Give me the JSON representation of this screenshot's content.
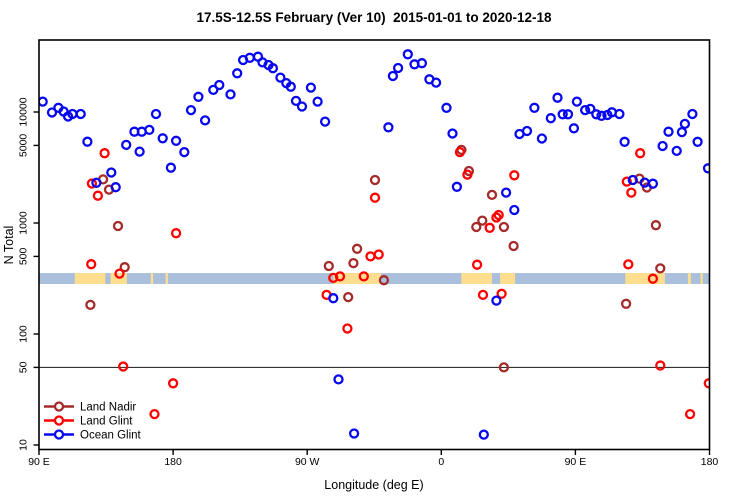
{
  "title": "17.5S-12.5S February (Ver 10)  2015-01-01 to 2020-12-18",
  "axes": {
    "x_label": "Longitude (deg E)",
    "y_label": "N Total",
    "x_ticks": [
      {
        "pos_deg": 0,
        "label": "90 E"
      },
      {
        "pos_deg": 90,
        "label": "180"
      },
      {
        "pos_deg": 180,
        "label": "90 W"
      },
      {
        "pos_deg": 270,
        "label": "0"
      },
      {
        "pos_deg": 360,
        "label": "90 E"
      },
      {
        "pos_deg": 450,
        "label": "180"
      }
    ],
    "y_ticks": [
      {
        "value": 10,
        "label": "10"
      },
      {
        "value": 50,
        "label": "50"
      },
      {
        "value": 100,
        "label": "100"
      },
      {
        "value": 500,
        "label": "500"
      },
      {
        "value": 1000,
        "label": "1000"
      },
      {
        "value": 5000,
        "label": "5000"
      },
      {
        "value": 10000,
        "label": "10000"
      }
    ]
  },
  "reference_line_value": 50,
  "map_band": {
    "n_range": [
      282,
      354
    ],
    "ocean_color": "#A9BFDB",
    "land_color": "#FFDF8F",
    "land_patches_deg": [
      [
        24,
        44.5
      ],
      [
        48,
        59
      ],
      [
        75,
        76.5
      ],
      [
        85,
        86.5
      ],
      [
        197.5,
        229.5
      ],
      [
        283.5,
        304
      ],
      [
        309.5,
        319.5
      ],
      [
        393.5,
        420
      ],
      [
        435.5,
        437.5
      ],
      [
        444,
        445.5
      ]
    ]
  },
  "legend": {
    "items": [
      {
        "label": "Land Nadir",
        "color": "#A52A2A"
      },
      {
        "label": "Land Glint",
        "color": "#FF0000"
      },
      {
        "label": "Ocean Glint",
        "color": "#0808EE"
      }
    ]
  },
  "chart_data": {
    "type": "scatter",
    "x_axis": {
      "label": "Longitude (deg E)",
      "tick_labels": [
        "90 E",
        "180",
        "90 W",
        "0",
        "90 E",
        "180"
      ],
      "span_deg": 450,
      "note": "x = degrees east of 90E along wrapped longitude axis (90E..180..90W..0..90E..180)"
    },
    "y_axis": {
      "label": "N Total",
      "scale": "log10",
      "ticks": [
        10,
        50,
        100,
        500,
        1000,
        5000,
        10000
      ],
      "range": [
        10,
        45000
      ]
    },
    "series": [
      {
        "name": "Land Nadir",
        "color": "#A52A2A",
        "points": [
          [
            34.5,
            183
          ],
          [
            43,
            2470
          ],
          [
            47,
            2000
          ],
          [
            53,
            940
          ],
          [
            57.5,
            400
          ],
          [
            194.5,
            410
          ],
          [
            207.5,
            215
          ],
          [
            211,
            435
          ],
          [
            213.5,
            585
          ],
          [
            225.5,
            2440
          ],
          [
            231.5,
            305
          ],
          [
            283.5,
            4560
          ],
          [
            288.5,
            2940
          ],
          [
            293.5,
            920
          ],
          [
            297.5,
            1050
          ],
          [
            304,
            1790
          ],
          [
            312,
            920
          ],
          [
            318.5,
            620
          ],
          [
            312,
            50
          ],
          [
            394,
            187
          ],
          [
            403,
            2510
          ],
          [
            408,
            2090
          ],
          [
            414,
            955
          ],
          [
            417,
            390
          ]
        ]
      },
      {
        "name": "Land Glint",
        "color": "#FF0000",
        "points": [
          [
            35,
            425
          ],
          [
            35.5,
            2270
          ],
          [
            39.5,
            1760
          ],
          [
            44,
            4250
          ],
          [
            54,
            350
          ],
          [
            56.5,
            51
          ],
          [
            77.5,
            19
          ],
          [
            90,
            36
          ],
          [
            92,
            810
          ],
          [
            193,
            225
          ],
          [
            197.5,
            320
          ],
          [
            202,
            330
          ],
          [
            207,
            112
          ],
          [
            218,
            330
          ],
          [
            222.5,
            500
          ],
          [
            228,
            520
          ],
          [
            225.5,
            1690
          ],
          [
            282.5,
            4350
          ],
          [
            287.5,
            2730
          ],
          [
            294,
            421
          ],
          [
            298,
            225
          ],
          [
            302.5,
            905
          ],
          [
            307,
            1120
          ],
          [
            308.5,
            1180
          ],
          [
            310.5,
            230
          ],
          [
            319,
            2690
          ],
          [
            394.5,
            2360
          ],
          [
            397.5,
            1880
          ],
          [
            403.5,
            4250
          ],
          [
            395.5,
            424
          ],
          [
            412,
            315
          ],
          [
            417,
            52
          ],
          [
            437,
            19
          ],
          [
            449.5,
            36
          ]
        ]
      },
      {
        "name": "Ocean Glint",
        "color": "#0808EE",
        "points": [
          [
            2.5,
            12400
          ],
          [
            8.7,
            9900
          ],
          [
            13,
            10900
          ],
          [
            16.5,
            10100
          ],
          [
            19.5,
            9100
          ],
          [
            22.5,
            9600
          ],
          [
            28,
            9600
          ],
          [
            32.5,
            5400
          ],
          [
            38.5,
            2300
          ],
          [
            48.5,
            2850
          ],
          [
            51.5,
            2100
          ],
          [
            58.5,
            5050
          ],
          [
            64,
            6650
          ],
          [
            67.5,
            4400
          ],
          [
            69,
            6650
          ],
          [
            74,
            6900
          ],
          [
            78.5,
            9600
          ],
          [
            83,
            5800
          ],
          [
            88.5,
            3150
          ],
          [
            92,
            5500
          ],
          [
            97.5,
            4350
          ],
          [
            102,
            10400
          ],
          [
            107,
            13700
          ],
          [
            111.5,
            8400
          ],
          [
            117,
            15800
          ],
          [
            121,
            17500
          ],
          [
            128.5,
            14400
          ],
          [
            133,
            22300
          ],
          [
            137,
            29400
          ],
          [
            141.5,
            30800
          ],
          [
            147,
            31500
          ],
          [
            150,
            28000
          ],
          [
            154,
            26500
          ],
          [
            157,
            24800
          ],
          [
            162,
            20400
          ],
          [
            166,
            18200
          ],
          [
            169,
            16900
          ],
          [
            172.5,
            12600
          ],
          [
            176.5,
            11200
          ],
          [
            182.5,
            16600
          ],
          [
            187,
            12400
          ],
          [
            192,
            8200
          ],
          [
            197.5,
            210
          ],
          [
            201,
            39
          ],
          [
            211.5,
            12.7
          ],
          [
            234.5,
            7280
          ],
          [
            237.5,
            21100
          ],
          [
            241,
            24900
          ],
          [
            247.5,
            33100
          ],
          [
            252,
            26900
          ],
          [
            257,
            27500
          ],
          [
            262,
            19700
          ],
          [
            266.5,
            18400
          ],
          [
            273.5,
            10900
          ],
          [
            277.5,
            6400
          ],
          [
            280.5,
            2120
          ],
          [
            298.5,
            12.4
          ],
          [
            307,
            200
          ],
          [
            313.5,
            1880
          ],
          [
            319,
            1310
          ],
          [
            322.5,
            6330
          ],
          [
            327.5,
            6740
          ],
          [
            332.5,
            10900
          ],
          [
            337.5,
            5770
          ],
          [
            343.5,
            8800
          ],
          [
            348,
            13450
          ],
          [
            351.5,
            9530
          ],
          [
            355,
            9530
          ],
          [
            359,
            7130
          ],
          [
            361,
            12400
          ],
          [
            366.5,
            10400
          ],
          [
            370,
            10660
          ],
          [
            374,
            9530
          ],
          [
            377.5,
            9250
          ],
          [
            381.5,
            9400
          ],
          [
            384.5,
            9940
          ],
          [
            389.5,
            9600
          ],
          [
            393,
            5390
          ],
          [
            398.5,
            2440
          ],
          [
            406.5,
            2310
          ],
          [
            412,
            2260
          ],
          [
            418.5,
            4940
          ],
          [
            422.5,
            6650
          ],
          [
            428,
            4460
          ],
          [
            431.5,
            6590
          ],
          [
            433.5,
            7820
          ],
          [
            438.5,
            9600
          ],
          [
            442,
            5390
          ],
          [
            449,
            3110
          ]
        ]
      }
    ]
  }
}
